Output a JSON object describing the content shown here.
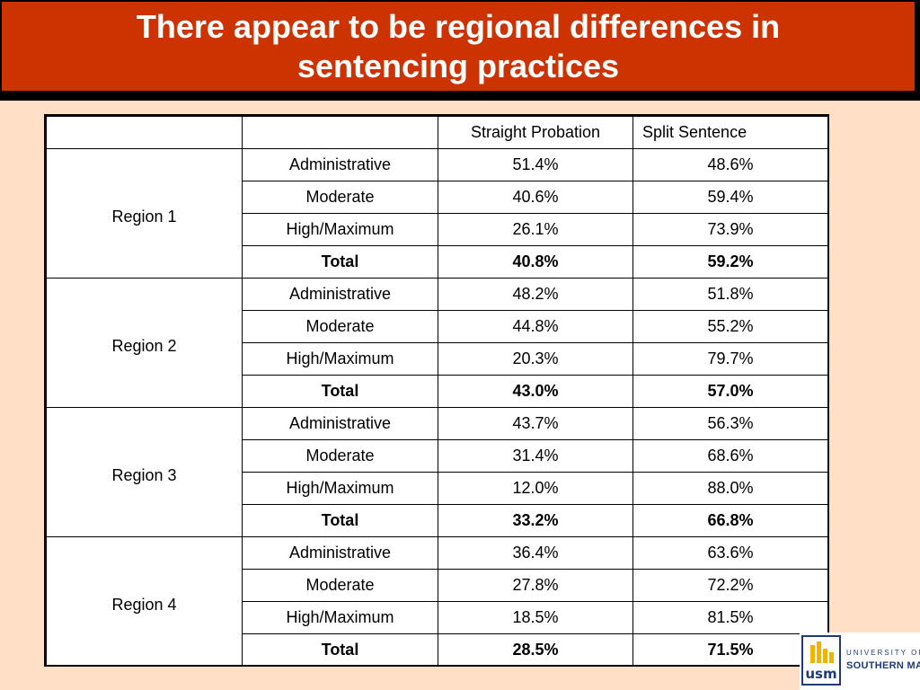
{
  "title": {
    "line1": "There appear to be regional differences in",
    "line2": "sentencing practices"
  },
  "table": {
    "headers": [
      "",
      "",
      "Straight Probation",
      "Split Sentence"
    ],
    "regions": [
      {
        "name": "Region 1",
        "rows": [
          {
            "level": "Administrative",
            "straight": "51.4%",
            "split": "48.6%"
          },
          {
            "level": "Moderate",
            "straight": "40.6%",
            "split": "59.4%"
          },
          {
            "level": "High/Maximum",
            "straight": "26.1%",
            "split": "73.9%"
          },
          {
            "level": "Total",
            "straight": "40.8%",
            "split": "59.2%"
          }
        ]
      },
      {
        "name": "Region 2",
        "rows": [
          {
            "level": "Administrative",
            "straight": "48.2%",
            "split": "51.8%"
          },
          {
            "level": "Moderate",
            "straight": "44.8%",
            "split": "55.2%"
          },
          {
            "level": "High/Maximum",
            "straight": "20.3%",
            "split": "79.7%"
          },
          {
            "level": "Total",
            "straight": "43.0%",
            "split": "57.0%"
          }
        ]
      },
      {
        "name": "Region 3",
        "rows": [
          {
            "level": "Administrative",
            "straight": "43.7%",
            "split": "56.3%"
          },
          {
            "level": "Moderate",
            "straight": "31.4%",
            "split": "68.6%"
          },
          {
            "level": "High/Maximum",
            "straight": "12.0%",
            "split": "88.0%"
          },
          {
            "level": "Total",
            "straight": "33.2%",
            "split": "66.8%"
          }
        ]
      },
      {
        "name": "Region 4",
        "rows": [
          {
            "level": "Administrative",
            "straight": "36.4%",
            "split": "63.6%"
          },
          {
            "level": "Moderate",
            "straight": "27.8%",
            "split": "72.2%"
          },
          {
            "level": "High/Maximum",
            "straight": "18.5%",
            "split": "81.5%"
          },
          {
            "level": "Total",
            "straight": "28.5%",
            "split": "71.5%"
          }
        ]
      }
    ]
  },
  "logo": {
    "mark": "usm",
    "line1": "UNIVERSITY OF",
    "line2": "SOUTHERN MAINE"
  },
  "colors": {
    "background": "#ffe0c6",
    "title_bar": "#cc3300",
    "title_text": "#ffffff"
  }
}
